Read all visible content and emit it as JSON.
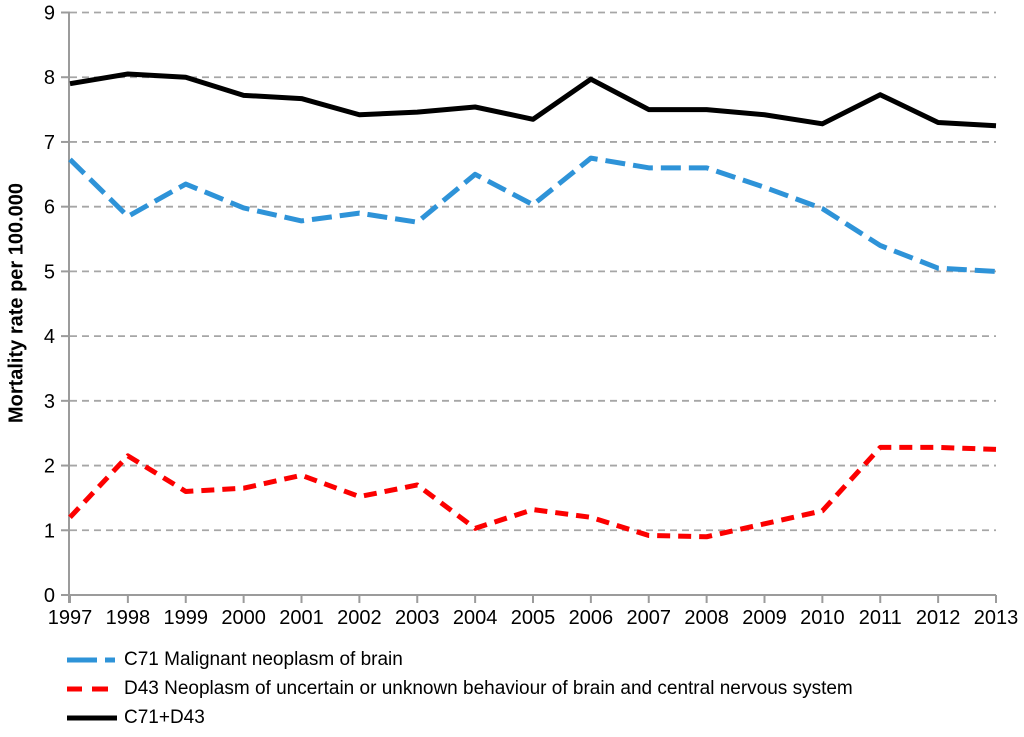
{
  "colors": {
    "background": "#ffffff",
    "axis": "#9B9B9B",
    "gridline": "#A6A6A6",
    "text": "#000000",
    "series_blue": "#2E93D8",
    "series_red": "#FC0000",
    "series_black": "#000000"
  },
  "chart_data": {
    "type": "line",
    "ylabel": "Mortality rate per 100.000",
    "xlabel": "",
    "ylim": [
      0,
      9
    ],
    "yticks": [
      0,
      1,
      2,
      3,
      4,
      5,
      6,
      7,
      8,
      9
    ],
    "grid": "horizontal-dashed",
    "legend_position": "bottom-left",
    "categories": [
      "1997",
      "1998",
      "1999",
      "2000",
      "2001",
      "2002",
      "2003",
      "2004",
      "2005",
      "2006",
      "2007",
      "2008",
      "2009",
      "2010",
      "2011",
      "2012",
      "2013"
    ],
    "series": [
      {
        "name": "C71 Malignant neoplasm of brain",
        "color": "#2E93D8",
        "dash": "long",
        "values": [
          6.73,
          5.85,
          6.35,
          5.98,
          5.78,
          5.9,
          5.76,
          6.5,
          6.03,
          6.75,
          6.6,
          6.6,
          6.3,
          5.97,
          5.4,
          5.05,
          5.0
        ]
      },
      {
        "name": "D43 Neoplasm of uncertain or unknown behaviour of brain and central nervous system",
        "color": "#FC0000",
        "dash": "short",
        "values": [
          1.2,
          2.15,
          1.6,
          1.65,
          1.85,
          1.52,
          1.7,
          1.03,
          1.32,
          1.2,
          0.92,
          0.9,
          1.1,
          1.3,
          2.28,
          2.28,
          2.25
        ]
      },
      {
        "name": "C71+D43",
        "color": "#000000",
        "dash": "solid",
        "values": [
          7.9,
          8.05,
          8.0,
          7.72,
          7.67,
          7.42,
          7.46,
          7.54,
          7.35,
          7.97,
          7.5,
          7.5,
          7.42,
          7.28,
          7.73,
          7.3,
          7.25
        ]
      }
    ]
  }
}
